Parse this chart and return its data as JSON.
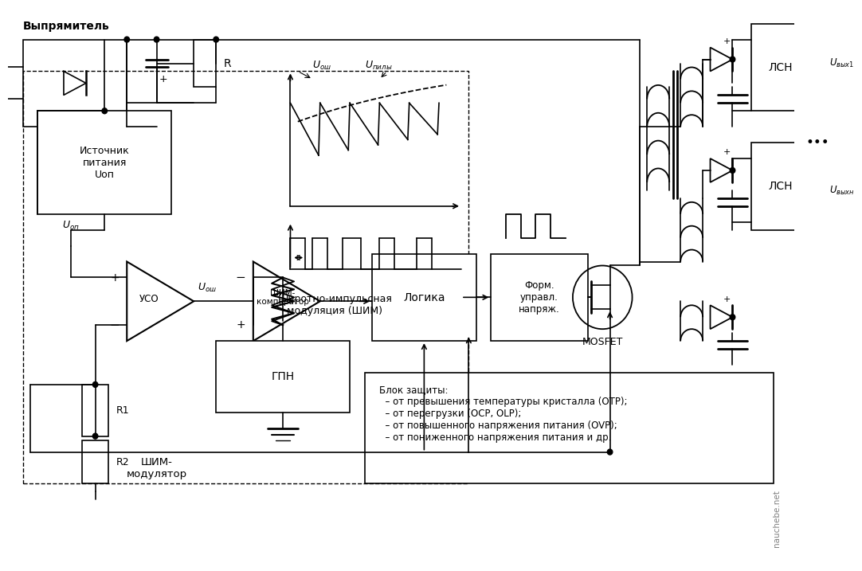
{
  "bg_color": "#ffffff",
  "line_color": "#000000",
  "dashed_color": "#000000",
  "title": "",
  "fig_width": 10.58,
  "fig_height": 7.0,
  "texts": {
    "vypryamitel": "Выпрямитель",
    "R": "R",
    "R1": "R1",
    "R2": "R2",
    "istochnik": "Источник\nпитания\nUоп",
    "u_op": "Uоп",
    "uso": "УСО",
    "u_osh_label1": "Uош",
    "u_pily": "Uпилы",
    "shim_mod": "Широтно-импульсная\nмодуляция (ШИМ)",
    "shim_komp": "ШИМ-\nкомпаратор",
    "logika": "Логика",
    "form": "Форм.\nуправл.\nнапряж.",
    "mosfet": "MOSFET",
    "gpn": "ГПН",
    "shim_modulator": "ШИМ-\nмодулятор",
    "lsn1": "ЛСН",
    "lsn2": "ЛСН",
    "u_vyx1": "Uвых1",
    "u_vyxn": "Uвыхн",
    "blok_zash": "Блок защиты:\n  – от превышения температуры кристалла (ОТР);\n  – от перегрузки (ОСР, ОLP);\n  – от повышенного напряжения питания (OVP);\n  – от пониженного напряжения питания и др.",
    "plus": "+",
    "minus": "−",
    "plus2": "+",
    "nauchebe": "nauchebe.net",
    "u_osh2": "Uош",
    "dots": "•••"
  },
  "font_sizes": {
    "main": 9,
    "small": 8,
    "label": 9,
    "block": 10
  }
}
